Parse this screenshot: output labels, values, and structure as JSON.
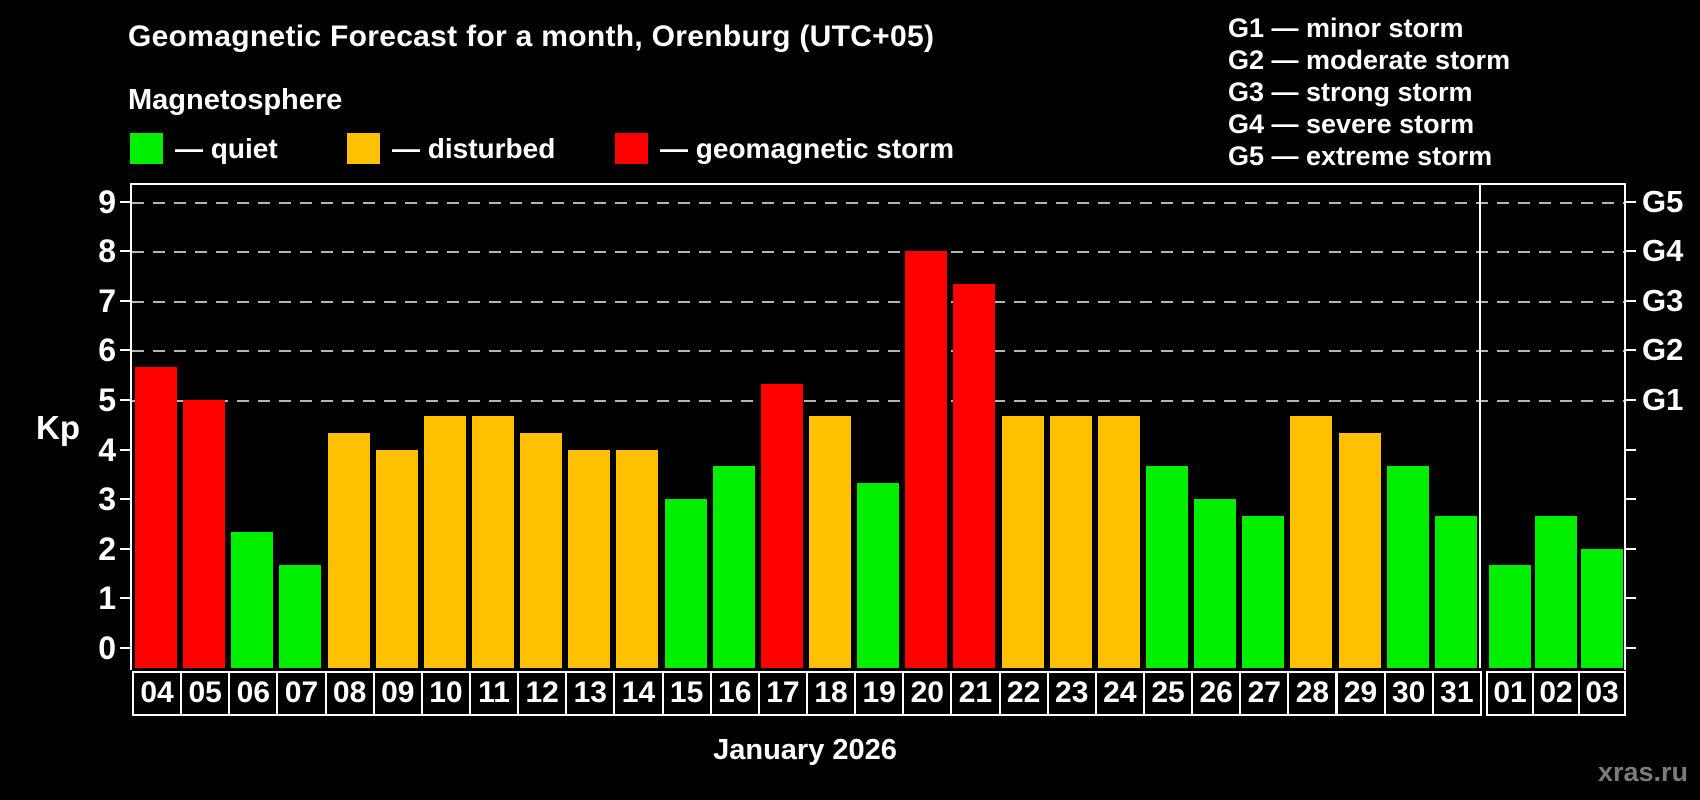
{
  "title": "Geomagnetic Forecast for a month, Orenburg (UTC+05)",
  "subtitle": "Magnetosphere",
  "legend": {
    "items": [
      {
        "key": "quiet",
        "label": "— quiet",
        "color": "#00ee00"
      },
      {
        "key": "disturbed",
        "label": "— disturbed",
        "color": "#ffc000"
      },
      {
        "key": "storm",
        "label": "— geomagnetic storm",
        "color": "#ff0000"
      }
    ]
  },
  "g_legend": [
    "G1 — minor storm",
    "G2 — moderate storm",
    "G3 — strong storm",
    "G4 — severe storm",
    "G5 — extreme storm"
  ],
  "axis": {
    "y_label": "Kp",
    "y_ticks": [
      0,
      1,
      2,
      3,
      4,
      5,
      6,
      7,
      8,
      9
    ],
    "right_labels": [
      {
        "kp": 5,
        "label": "G1"
      },
      {
        "kp": 6,
        "label": "G2"
      },
      {
        "kp": 7,
        "label": "G3"
      },
      {
        "kp": 8,
        "label": "G4"
      },
      {
        "kp": 9,
        "label": "G5"
      }
    ]
  },
  "x_axis_title": "January 2026",
  "watermark": "xras.ru",
  "chart_data": {
    "type": "bar",
    "title": "Geomagnetic Forecast for a month, Orenburg (UTC+05)",
    "ylabel": "Kp",
    "ylim": [
      0,
      9
    ],
    "grid_levels": [
      5,
      6,
      7,
      8,
      9
    ],
    "legend_position": "top-left",
    "categories": [
      "04",
      "05",
      "06",
      "07",
      "08",
      "09",
      "10",
      "11",
      "12",
      "13",
      "14",
      "15",
      "16",
      "17",
      "18",
      "19",
      "20",
      "21",
      "22",
      "23",
      "24",
      "25",
      "26",
      "27",
      "28",
      "29",
      "30",
      "31",
      "01",
      "02",
      "03"
    ],
    "values": [
      5.67,
      5.0,
      2.33,
      1.67,
      4.33,
      4.0,
      4.67,
      4.67,
      4.33,
      4.0,
      4.0,
      3.0,
      3.67,
      5.33,
      4.67,
      3.33,
      8.0,
      7.33,
      4.67,
      4.67,
      4.67,
      3.67,
      3.0,
      2.67,
      4.67,
      4.33,
      3.67,
      2.67,
      1.67,
      2.67,
      2.0
    ],
    "statuses": [
      "storm",
      "storm",
      "quiet",
      "quiet",
      "disturbed",
      "disturbed",
      "disturbed",
      "disturbed",
      "disturbed",
      "disturbed",
      "disturbed",
      "quiet",
      "quiet",
      "storm",
      "disturbed",
      "quiet",
      "storm",
      "storm",
      "disturbed",
      "disturbed",
      "disturbed",
      "quiet",
      "quiet",
      "quiet",
      "disturbed",
      "disturbed",
      "quiet",
      "quiet",
      "quiet",
      "quiet",
      "quiet"
    ],
    "colors": {
      "quiet": "#00ee00",
      "disturbed": "#ffc000",
      "storm": "#ff0000"
    },
    "month_break_after_index": 27
  }
}
